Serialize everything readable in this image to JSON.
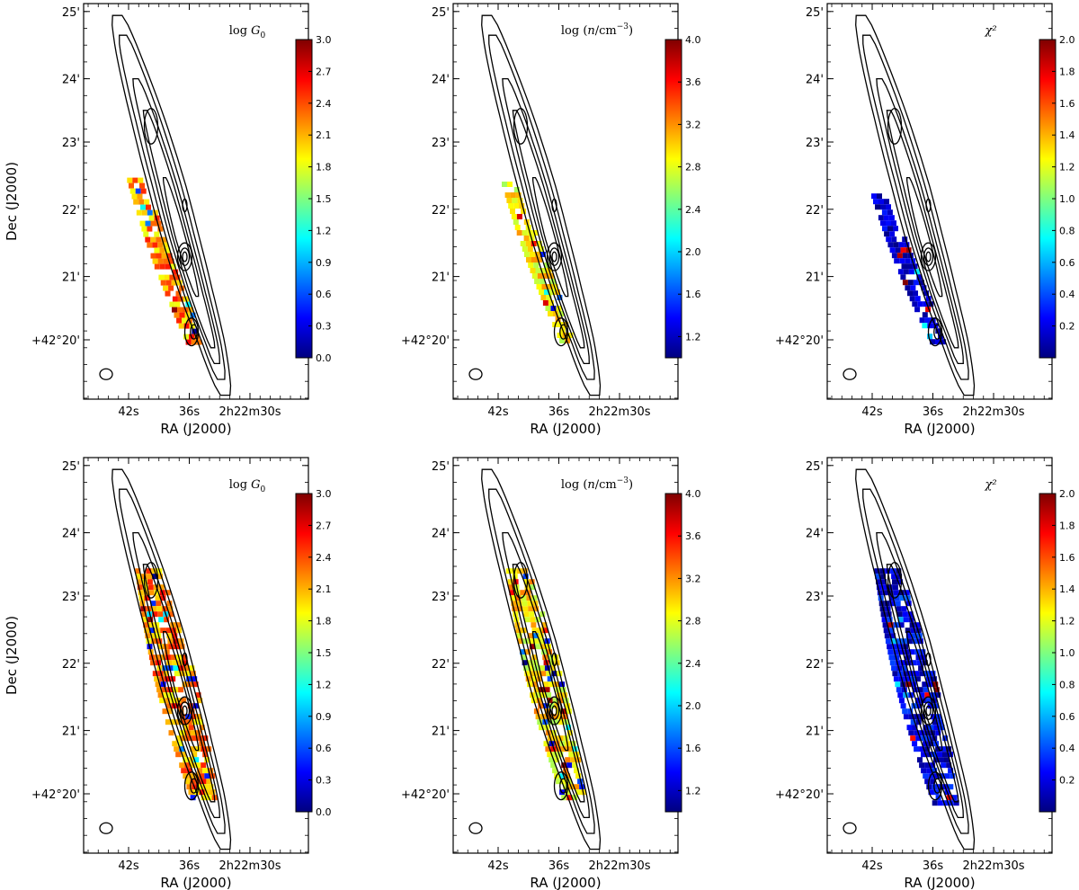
{
  "colors": {
    "jet": [
      "#00007f",
      "#0000ff",
      "#007fff",
      "#00ffff",
      "#7fff7f",
      "#ffff00",
      "#ff7f00",
      "#ff0000",
      "#7f0000"
    ],
    "contour": "#000000"
  },
  "chart_data": [
    {
      "type": "heatmap",
      "row": 0,
      "col": 0,
      "label": "log G0",
      "xlabel": "RA (J2000)",
      "ylabel": "Dec (J2000)",
      "xticks": [
        "42s",
        "36s",
        "2h22m30s"
      ],
      "yticks": [
        "25'",
        "24'",
        "23'",
        "22'",
        "21'",
        "+42°20'"
      ],
      "colorbar": {
        "range": [
          0.0,
          3.0
        ],
        "ticks": [
          "0.0",
          "0.3",
          "0.6",
          "0.9",
          "1.2",
          "1.5",
          "1.8",
          "2.1",
          "2.4",
          "2.7",
          "3.0"
        ]
      },
      "pixel_region": {
        "start": [
          0.22,
          0.44
        ],
        "end": [
          0.49,
          0.86
        ],
        "width": 0.045,
        "value_range": [
          1.8,
          2.6
        ]
      }
    },
    {
      "type": "heatmap",
      "row": 0,
      "col": 1,
      "label": "log (n/cm^-3)",
      "xlabel": "RA (J2000)",
      "ylabel": "",
      "xticks": [
        "42s",
        "36s",
        "2h22m30s"
      ],
      "yticks": [
        "25'",
        "24'",
        "23'",
        "22'",
        "21'",
        "+42°20'"
      ],
      "colorbar": {
        "range": [
          1.0,
          4.0
        ],
        "ticks": [
          "1.2",
          "1.6",
          "2.0",
          "2.4",
          "2.8",
          "3.2",
          "3.6",
          "4.0"
        ]
      },
      "pixel_region": {
        "start": [
          0.24,
          0.45
        ],
        "end": [
          0.5,
          0.85
        ],
        "width": 0.04,
        "value_range": [
          2.6,
          3.2
        ]
      }
    },
    {
      "type": "heatmap",
      "row": 0,
      "col": 2,
      "label": "χ²",
      "xlabel": "RA (J2000)",
      "ylabel": "",
      "xticks": [
        "42s",
        "36s",
        "2h22m30s"
      ],
      "yticks": [
        "25'",
        "24'",
        "23'",
        "22'",
        "21'",
        "+42°20'"
      ],
      "colorbar": {
        "range": [
          0.0,
          2.0
        ],
        "ticks": [
          "0.2",
          "0.4",
          "0.6",
          "0.8",
          "1.0",
          "1.2",
          "1.4",
          "1.6",
          "1.8",
          "2.0"
        ]
      },
      "pixel_region": {
        "start": [
          0.22,
          0.48
        ],
        "end": [
          0.49,
          0.86
        ],
        "width": 0.04,
        "value_range": [
          0.0,
          0.3
        ]
      }
    },
    {
      "type": "heatmap",
      "row": 1,
      "col": 0,
      "label": "log G0",
      "xlabel": "RA (J2000)",
      "ylabel": "Dec (J2000)",
      "xticks": [
        "42s",
        "36s",
        "2h22m30s"
      ],
      "yticks": [
        "25'",
        "24'",
        "23'",
        "22'",
        "21'",
        "+42°20'"
      ],
      "colorbar": {
        "range": [
          0.0,
          3.0
        ],
        "ticks": [
          "0.0",
          "0.3",
          "0.6",
          "0.9",
          "1.2",
          "1.5",
          "1.8",
          "2.1",
          "2.4",
          "2.7",
          "3.0"
        ]
      },
      "pixel_region": {
        "start": [
          0.28,
          0.28
        ],
        "end": [
          0.53,
          0.86
        ],
        "width": 0.085,
        "value_range": [
          1.8,
          2.6
        ]
      }
    },
    {
      "type": "heatmap",
      "row": 1,
      "col": 1,
      "label": "log (n/cm^-3)",
      "xlabel": "RA (J2000)",
      "ylabel": "",
      "xticks": [
        "42s",
        "36s",
        "2h22m30s"
      ],
      "yticks": [
        "25'",
        "24'",
        "23'",
        "22'",
        "21'",
        "+42°20'"
      ],
      "colorbar": {
        "range": [
          1.0,
          4.0
        ],
        "ticks": [
          "1.2",
          "1.6",
          "2.0",
          "2.4",
          "2.8",
          "3.2",
          "3.6",
          "4.0"
        ]
      },
      "pixel_region": {
        "start": [
          0.28,
          0.28
        ],
        "end": [
          0.53,
          0.86
        ],
        "width": 0.075,
        "value_range": [
          2.6,
          3.3
        ]
      }
    },
    {
      "type": "heatmap",
      "row": 1,
      "col": 2,
      "label": "χ²",
      "xlabel": "RA (J2000)",
      "ylabel": "",
      "xticks": [
        "42s",
        "36s",
        "2h22m30s"
      ],
      "yticks": [
        "25'",
        "24'",
        "23'",
        "22'",
        "21'",
        "+42°20'"
      ],
      "colorbar": {
        "range": [
          0.0,
          2.0
        ],
        "ticks": [
          "0.2",
          "0.4",
          "0.6",
          "0.8",
          "1.0",
          "1.2",
          "1.4",
          "1.6",
          "1.8",
          "2.0"
        ]
      },
      "pixel_region": {
        "start": [
          0.26,
          0.28
        ],
        "end": [
          0.52,
          0.87
        ],
        "width": 0.085,
        "value_range": [
          0.0,
          0.4
        ]
      }
    }
  ]
}
